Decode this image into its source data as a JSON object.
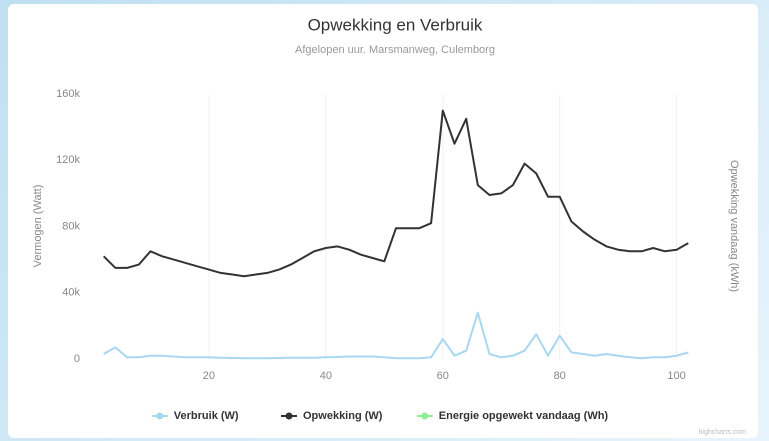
{
  "chart_data": {
    "type": "line",
    "title": "Opwekking en Verbruik",
    "subtitle": "Afgelopen uur. Marsmanweg, Culemborg",
    "y_label": "Vermogen (Watt)",
    "y2_label": "Opwekking vandaag (kWh)",
    "credits": "highcharts.com",
    "x": [
      2,
      4,
      6,
      8,
      10,
      12,
      14,
      16,
      18,
      20,
      22,
      24,
      26,
      28,
      30,
      32,
      34,
      36,
      38,
      40,
      42,
      44,
      46,
      48,
      50,
      52,
      54,
      56,
      58,
      60,
      62,
      64,
      66,
      68,
      70,
      72,
      74,
      76,
      78,
      80,
      82,
      84,
      86,
      88,
      90,
      92,
      94,
      96,
      98,
      100,
      102
    ],
    "xlim": [
      0,
      104
    ],
    "xticks": [
      20,
      40,
      60,
      80,
      100
    ],
    "ylim": [
      0,
      160000
    ],
    "yticks": [
      0,
      {
        "value": 40000,
        "label": "40k"
      },
      {
        "value": 80000,
        "label": "80k"
      },
      {
        "value": 120000,
        "label": "120k"
      },
      {
        "value": 160000,
        "label": "160k"
      }
    ],
    "grid": "x",
    "series": [
      {
        "name": "Verbruik (W)",
        "color": "#a9d7f0",
        "values": [
          3000,
          7000,
          1000,
          1000,
          2000,
          2000,
          1500,
          1000,
          1000,
          1000,
          800,
          600,
          500,
          500,
          500,
          600,
          800,
          800,
          800,
          1000,
          1200,
          1500,
          1500,
          1500,
          1000,
          500,
          500,
          500,
          1000,
          12000,
          2000,
          5000,
          28000,
          3000,
          1000,
          2000,
          5000,
          15000,
          2000,
          14000,
          4000,
          3000,
          2000,
          3000,
          2000,
          1000,
          500,
          1000,
          1000,
          2000,
          4000
        ]
      },
      {
        "name": "Opwekking (W)",
        "color": "#333333",
        "values": [
          62000,
          55000,
          55000,
          57000,
          65000,
          62000,
          60000,
          58000,
          56000,
          54000,
          52000,
          51000,
          50000,
          51000,
          52000,
          54000,
          57000,
          61000,
          65000,
          67000,
          68000,
          66000,
          63000,
          61000,
          59000,
          79000,
          79000,
          79000,
          82000,
          150000,
          130000,
          145000,
          105000,
          99000,
          100000,
          105000,
          118000,
          112000,
          98000,
          98000,
          83000,
          77000,
          72000,
          68000,
          66000,
          65000,
          65000,
          67000,
          65000,
          66000,
          70000
        ]
      },
      {
        "name": "Energie opgewekt vandaag (Wh)",
        "color": "#90ee90",
        "axis": "y2",
        "values": [
          null,
          null,
          null,
          null,
          null,
          null,
          null,
          null,
          null,
          null,
          null,
          null,
          null,
          null,
          null,
          null,
          null,
          null,
          null,
          null,
          null,
          null,
          null,
          null,
          null,
          null,
          null,
          null,
          null,
          null,
          null,
          null,
          null,
          null,
          null,
          null,
          null,
          null,
          null,
          null,
          null,
          null,
          null,
          null,
          null,
          null,
          null,
          null,
          null,
          null,
          null
        ]
      }
    ]
  }
}
